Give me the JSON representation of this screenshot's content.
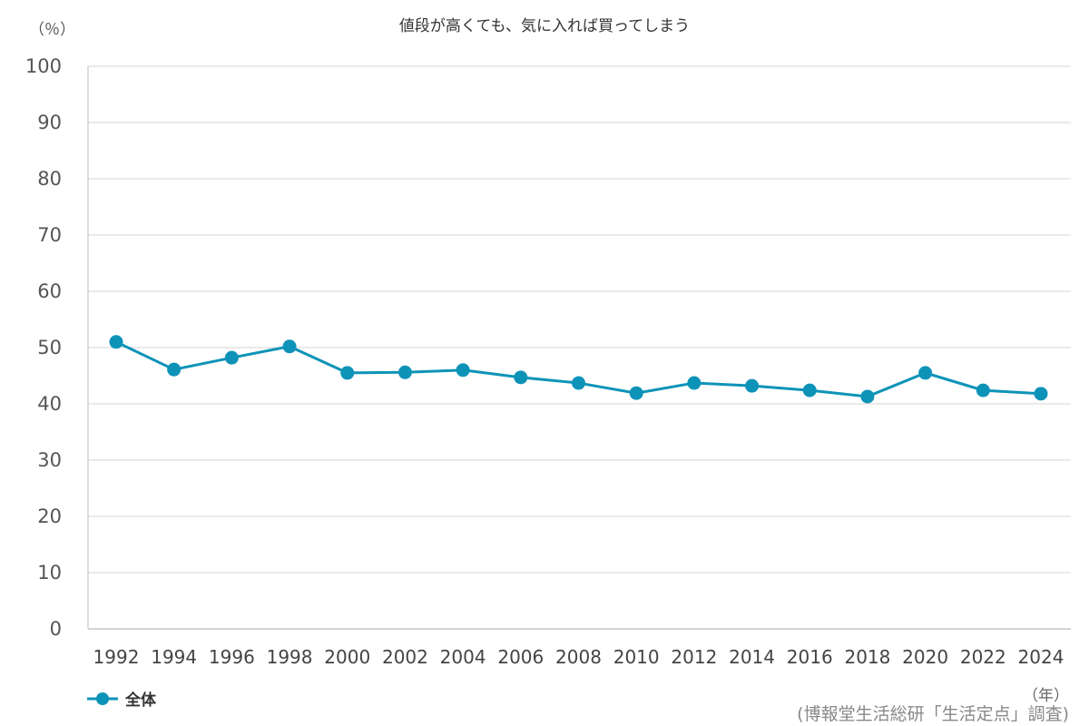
{
  "chart_data": {
    "type": "line",
    "title": "値段が高くても、気に入れば買ってしまう",
    "ylabel": "（％）",
    "xlabel": "（年）",
    "source": "(博報堂生活総研「生活定点」調査)",
    "ylim": [
      0,
      100
    ],
    "yticks": [
      0,
      10,
      20,
      30,
      40,
      50,
      60,
      70,
      80,
      90,
      100
    ],
    "grid": true,
    "legend_position": "bottom-left",
    "categories": [
      "1992",
      "1994",
      "1996",
      "1998",
      "2000",
      "2002",
      "2004",
      "2006",
      "2008",
      "2010",
      "2012",
      "2014",
      "2016",
      "2018",
      "2020",
      "2022",
      "2024"
    ],
    "series": [
      {
        "name": "全体",
        "color": "#0e93b8",
        "values": [
          51.0,
          46.1,
          48.2,
          50.2,
          45.5,
          45.6,
          46.0,
          44.7,
          43.7,
          41.9,
          43.7,
          43.2,
          42.4,
          41.3,
          45.5,
          42.4,
          41.8
        ]
      }
    ]
  }
}
